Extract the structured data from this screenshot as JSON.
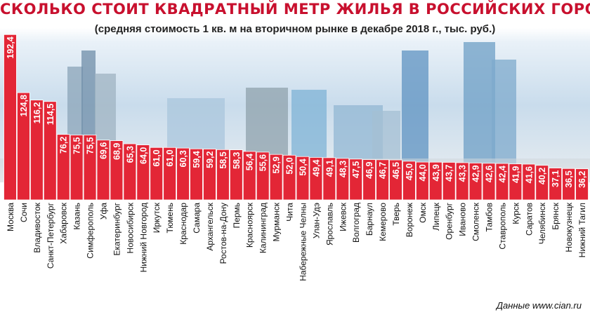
{
  "header": {
    "title": "СКОЛЬКО СТОИТ КВАДРАТНЫЙ МЕТР ЖИЛЬЯ В РОССИЙСКИХ ГОРОДАХ",
    "subtitle": "(средняя стоимость 1 кв. м на вторичном рынке в декабре 2018 г., тыс. руб.)"
  },
  "footer": {
    "source": "Данные  www.cian.ru"
  },
  "colors": {
    "bar": "#e32636",
    "bar_edge": "#ffffff",
    "label_text": "#ffffff",
    "title": "#c8102e"
  },
  "chart_data": {
    "type": "bar",
    "title": "СКОЛЬКО СТОИТ КВАДРАТНЫЙ МЕТР ЖИЛЬЯ В РОССИЙСКИХ ГОРОДАХ",
    "subtitle": "(средняя стоимость 1 кв. м на вторичном рынке в декабре 2018 г., тыс. руб.)",
    "categories": [
      "Москва",
      "Сочи",
      "Владивосток",
      "Санкт-Петербург",
      "Хабаровск",
      "Казань",
      "Симферополь",
      "Уфа",
      "Екатеринбург",
      "Новосибирск",
      "Нижний Новгород",
      "Иркутск",
      "Тюмень",
      "Краснодар",
      "Самара",
      "Архангельск",
      "Ростов-на-Дону",
      "Пермь",
      "Красноярск",
      "Калининград",
      "Мурманск",
      "Чита",
      "Набережные Челны",
      "Улан-Удэ",
      "Ярославль",
      "Ижевск",
      "Волгоград",
      "Барнаул",
      "Кемерово",
      "Тверь",
      "Воронеж",
      "Омск",
      "Липецк",
      "Оренбург",
      "Иваново",
      "Смоленск",
      "Тамбов",
      "Ставрополь",
      "Курск",
      "Саратов",
      "Челябинск",
      "Брянск",
      "Новокузнецк",
      "Нижний Тагил"
    ],
    "value_labels": [
      "192,4",
      "124,8",
      "116,2",
      "114,5",
      "76,2",
      "75,5",
      "75,5",
      "69,6",
      "68,9",
      "65,3",
      "64,0",
      "61,0",
      "61,0",
      "60,3",
      "59,4",
      "59,2",
      "58,5",
      "58,3",
      "56,4",
      "55,6",
      "52,9",
      "52,0",
      "50,4",
      "49,4",
      "49,1",
      "48,3",
      "47,5",
      "46,9",
      "46,7",
      "46,5",
      "45,0",
      "44,0",
      "43,9",
      "43,7",
      "43,3",
      "42,9",
      "42,6",
      "42,4",
      "41,9",
      "41,6",
      "40,2",
      "37,1",
      "36,5",
      "36,2"
    ],
    "values": [
      192.4,
      124.8,
      116.2,
      114.5,
      76.2,
      75.5,
      75.5,
      69.6,
      68.9,
      65.3,
      64.0,
      61.0,
      61.0,
      60.3,
      59.4,
      59.2,
      58.5,
      58.3,
      56.4,
      55.6,
      52.9,
      52.0,
      50.4,
      49.4,
      49.1,
      48.3,
      47.5,
      46.9,
      46.7,
      46.5,
      45.0,
      44.0,
      43.9,
      43.7,
      43.3,
      42.9,
      42.6,
      42.4,
      41.9,
      41.6,
      40.2,
      37.1,
      36.5,
      36.2
    ],
    "xlabel": "",
    "ylabel": "",
    "ylim": [
      0,
      200
    ],
    "grid": false,
    "legend": "none"
  }
}
